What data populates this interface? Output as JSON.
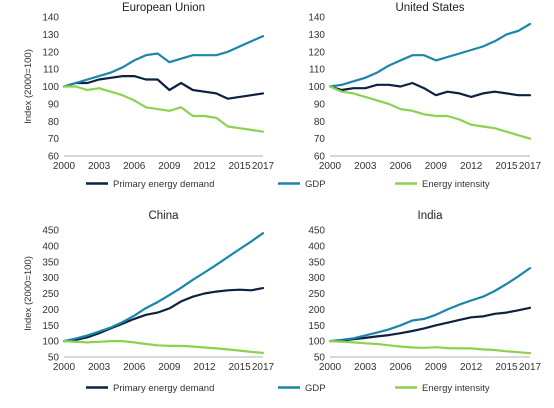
{
  "chart_data": [
    {
      "type": "line",
      "title": "European Union",
      "ylabel": "Index (2000=100)",
      "ylim": [
        60,
        140
      ],
      "yticks": [
        60,
        70,
        80,
        90,
        100,
        110,
        120,
        130,
        140
      ],
      "xticks": [
        2000,
        2003,
        2006,
        2009,
        2012,
        2015,
        2017
      ],
      "x": [
        2000,
        2001,
        2002,
        2003,
        2004,
        2005,
        2006,
        2007,
        2008,
        2009,
        2010,
        2011,
        2012,
        2013,
        2014,
        2015,
        2016,
        2017
      ],
      "series": [
        {
          "name": "Primary energy demand",
          "color": "#0d2240",
          "values": [
            100,
            102,
            102,
            104,
            105,
            106,
            106,
            104,
            104,
            98,
            102,
            98,
            97,
            96,
            93,
            94,
            95,
            96
          ]
        },
        {
          "name": "GDP",
          "color": "#1a86aa",
          "values": [
            100,
            102,
            104,
            106,
            108,
            111,
            115,
            118,
            119,
            114,
            116,
            118,
            118,
            118,
            120,
            123,
            126,
            129
          ]
        },
        {
          "name": "Energy intensity",
          "color": "#8ed14f",
          "values": [
            100,
            100,
            98,
            99,
            97,
            95,
            92,
            88,
            87,
            86,
            88,
            83,
            83,
            82,
            77,
            76,
            75,
            74
          ]
        }
      ]
    },
    {
      "type": "line",
      "title": "United States",
      "ylabel": "",
      "ylim": [
        60,
        140
      ],
      "yticks": [
        60,
        70,
        80,
        90,
        100,
        110,
        120,
        130,
        140
      ],
      "xticks": [
        2000,
        2003,
        2006,
        2009,
        2012,
        2015,
        2017
      ],
      "x": [
        2000,
        2001,
        2002,
        2003,
        2004,
        2005,
        2006,
        2007,
        2008,
        2009,
        2010,
        2011,
        2012,
        2013,
        2014,
        2015,
        2016,
        2017
      ],
      "series": [
        {
          "name": "Primary energy demand",
          "color": "#0d2240",
          "values": [
            100,
            98,
            99,
            99,
            101,
            101,
            100,
            102,
            99,
            95,
            97,
            96,
            94,
            96,
            97,
            96,
            95,
            95
          ]
        },
        {
          "name": "GDP",
          "color": "#1a86aa",
          "values": [
            100,
            101,
            103,
            105,
            108,
            112,
            115,
            118,
            118,
            115,
            117,
            119,
            121,
            123,
            126,
            130,
            132,
            136
          ]
        },
        {
          "name": "Energy intensity",
          "color": "#8ed14f",
          "values": [
            100,
            97,
            96,
            94,
            92,
            90,
            87,
            86,
            84,
            83,
            83,
            81,
            78,
            77,
            76,
            74,
            72,
            70
          ]
        }
      ]
    },
    {
      "type": "line",
      "title": "China",
      "ylabel": "Index (2000=100)",
      "ylim": [
        50,
        450
      ],
      "yticks": [
        50,
        100,
        150,
        200,
        250,
        300,
        350,
        400,
        450
      ],
      "xticks": [
        2000,
        2003,
        2006,
        2009,
        2012,
        2015,
        2017
      ],
      "x": [
        2000,
        2001,
        2002,
        2003,
        2004,
        2005,
        2006,
        2007,
        2008,
        2009,
        2010,
        2011,
        2012,
        2013,
        2014,
        2015,
        2016,
        2017
      ],
      "series": [
        {
          "name": "Primary energy demand",
          "color": "#0d2240",
          "values": [
            100,
            104,
            112,
            125,
            140,
            155,
            170,
            183,
            190,
            203,
            225,
            240,
            250,
            256,
            260,
            262,
            260,
            267
          ]
        },
        {
          "name": "GDP",
          "color": "#1a86aa",
          "values": [
            100,
            108,
            118,
            130,
            143,
            160,
            180,
            204,
            223,
            245,
            268,
            293,
            316,
            340,
            365,
            390,
            414,
            440
          ]
        },
        {
          "name": "Energy intensity",
          "color": "#8ed14f",
          "values": [
            100,
            98,
            96,
            98,
            100,
            100,
            96,
            91,
            87,
            85,
            85,
            83,
            80,
            77,
            74,
            70,
            66,
            63
          ]
        }
      ]
    },
    {
      "type": "line",
      "title": "India",
      "ylabel": "",
      "ylim": [
        50,
        450
      ],
      "yticks": [
        50,
        100,
        150,
        200,
        250,
        300,
        350,
        400,
        450
      ],
      "xticks": [
        2000,
        2003,
        2006,
        2009,
        2012,
        2015,
        2017
      ],
      "x": [
        2000,
        2001,
        2002,
        2003,
        2004,
        2005,
        2006,
        2007,
        2008,
        2009,
        2010,
        2011,
        2012,
        2013,
        2014,
        2015,
        2016,
        2017
      ],
      "series": [
        {
          "name": "Primary energy demand",
          "color": "#0d2240",
          "values": [
            100,
            102,
            106,
            110,
            115,
            119,
            125,
            132,
            140,
            150,
            158,
            167,
            175,
            178,
            186,
            190,
            197,
            205
          ]
        },
        {
          "name": "GDP",
          "color": "#1a86aa",
          "values": [
            100,
            104,
            109,
            118,
            127,
            137,
            150,
            165,
            170,
            183,
            200,
            215,
            228,
            240,
            258,
            280,
            304,
            330
          ]
        },
        {
          "name": "Energy intensity",
          "color": "#8ed14f",
          "values": [
            100,
            98,
            96,
            93,
            91,
            87,
            83,
            80,
            79,
            81,
            78,
            77,
            77,
            74,
            72,
            68,
            65,
            62
          ]
        }
      ]
    }
  ],
  "legend": [
    {
      "label": "Primary energy demand",
      "color": "#0d2240"
    },
    {
      "label": "GDP",
      "color": "#1a86aa"
    },
    {
      "label": "Energy intensity",
      "color": "#8ed14f"
    }
  ]
}
